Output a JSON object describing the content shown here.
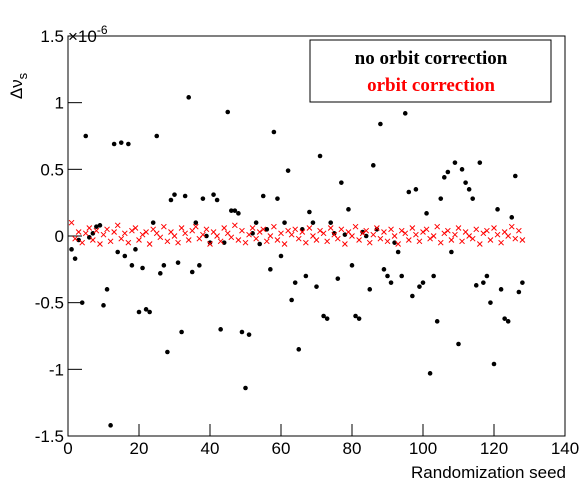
{
  "chart_data": {
    "type": "scatter",
    "xlabel": "Randomization seed",
    "ylabel": {
      "main": "Δν",
      "sub": "s"
    },
    "y_multiplier": {
      "base": "×10",
      "exponent": "-6"
    },
    "xlim": [
      0,
      140
    ],
    "xticks": [
      0,
      20,
      40,
      60,
      80,
      100,
      120,
      140
    ],
    "ylim": [
      -1.5,
      1.5
    ],
    "yticks": [
      -1.5,
      -1,
      -0.5,
      0,
      0.5,
      1,
      1.5
    ],
    "legend": "upper right",
    "x": [
      1,
      2,
      3,
      4,
      5,
      6,
      7,
      8,
      9,
      10,
      11,
      12,
      13,
      14,
      15,
      16,
      17,
      18,
      19,
      20,
      21,
      22,
      23,
      24,
      25,
      26,
      27,
      28,
      29,
      30,
      31,
      32,
      33,
      34,
      35,
      36,
      37,
      38,
      39,
      40,
      41,
      42,
      43,
      44,
      45,
      46,
      47,
      48,
      49,
      50,
      51,
      52,
      53,
      54,
      55,
      56,
      57,
      58,
      59,
      60,
      61,
      62,
      63,
      64,
      65,
      66,
      67,
      68,
      69,
      70,
      71,
      72,
      73,
      74,
      75,
      76,
      77,
      78,
      79,
      80,
      81,
      82,
      83,
      84,
      85,
      86,
      87,
      88,
      89,
      90,
      91,
      92,
      93,
      94,
      95,
      96,
      97,
      98,
      99,
      100,
      101,
      102,
      103,
      104,
      105,
      106,
      107,
      108,
      109,
      110,
      111,
      112,
      113,
      114,
      115,
      116,
      117,
      118,
      119,
      120,
      121,
      122,
      123,
      124,
      125,
      126,
      127,
      128
    ],
    "series": [
      {
        "name": "no orbit correction",
        "color": "#000000",
        "marker": "dot",
        "values": [
          -0.1,
          -0.17,
          -0.03,
          -0.5,
          0.75,
          -0.01,
          0.02,
          0.07,
          0.08,
          -0.52,
          -0.4,
          -1.42,
          0.69,
          -0.12,
          0.7,
          -0.15,
          0.69,
          -0.22,
          -0.1,
          -0.57,
          -0.24,
          -0.55,
          -0.57,
          0.1,
          0.75,
          -0.28,
          -0.22,
          -0.87,
          0.27,
          0.31,
          -0.2,
          -0.72,
          0.3,
          1.04,
          -0.27,
          0.1,
          -0.22,
          0.28,
          0.0,
          -0.05,
          0.31,
          0.27,
          -0.7,
          -0.05,
          0.93,
          0.19,
          0.19,
          0.17,
          -0.72,
          -1.14,
          -0.74,
          0.02,
          0.1,
          -0.06,
          0.3,
          0.05,
          -0.25,
          0.78,
          0.28,
          -0.15,
          0.1,
          0.49,
          -0.48,
          -0.35,
          -0.85,
          0.05,
          -0.3,
          0.18,
          0.1,
          -0.38,
          0.6,
          -0.6,
          -0.62,
          0.1,
          0.02,
          -0.32,
          0.4,
          0.01,
          0.2,
          -0.22,
          -0.6,
          -0.62,
          0.03,
          0.0,
          -0.4,
          0.53,
          0.05,
          0.84,
          -0.25,
          -0.3,
          -0.35,
          -0.05,
          -0.12,
          -0.3,
          0.92,
          0.33,
          -0.45,
          0.35,
          -0.38,
          -0.35,
          0.17,
          -1.03,
          -0.3,
          -0.64,
          0.28,
          0.44,
          0.48,
          -0.12,
          0.55,
          -0.81,
          0.5,
          0.4,
          0.35,
          0.28,
          -0.37,
          0.55,
          -0.35,
          -0.3,
          -0.5,
          -0.96,
          0.2,
          -0.4,
          -0.62,
          -0.64,
          0.14,
          0.45,
          -0.42,
          -0.35
        ]
      },
      {
        "name": "orbit correction",
        "color": "#ff0000",
        "marker": "cross",
        "values": [
          0.1,
          -0.02,
          0.03,
          -0.05,
          0.02,
          0.06,
          -0.03,
          0.04,
          -0.06,
          0.01,
          0.05,
          -0.04,
          0.03,
          0.08,
          -0.02,
          0.02,
          -0.05,
          0.04,
          0.06,
          -0.03,
          0.01,
          0.03,
          -0.06,
          0.05,
          0.02,
          -0.01,
          0.07,
          -0.04,
          0.03,
          0.0,
          -0.05,
          0.06,
          0.02,
          -0.03,
          0.04,
          0.07,
          -0.02,
          0.01,
          0.05,
          -0.06,
          0.03,
          0.0,
          -0.04,
          0.06,
          0.02,
          -0.01,
          0.08,
          -0.03,
          0.04,
          -0.05,
          0.01,
          0.06,
          -0.02,
          0.03,
          0.05,
          -0.04,
          0.0,
          0.07,
          -0.03,
          0.02,
          -0.06,
          0.04,
          0.01,
          0.05,
          -0.02,
          0.03,
          -0.05,
          0.06,
          0.0,
          -0.03,
          0.04,
          0.02,
          -0.04,
          0.06,
          0.01,
          -0.02,
          0.05,
          -0.06,
          0.03,
          0.0,
          0.07,
          -0.03,
          0.02,
          0.04,
          -0.05,
          0.01,
          0.06,
          -0.02,
          0.03,
          -0.04,
          0.05,
          0.0,
          -0.06,
          0.04,
          0.02,
          -0.03,
          0.06,
          0.01,
          -0.04,
          0.03,
          0.05,
          -0.02,
          0.0,
          0.07,
          -0.05,
          0.02,
          0.04,
          -0.03,
          0.01,
          0.06,
          -0.04,
          0.03,
          0.0,
          -0.02,
          0.05,
          -0.06,
          0.02,
          0.04,
          -0.03,
          0.06,
          0.01,
          -0.05,
          0.03,
          0.0,
          0.07,
          -0.02,
          0.04,
          -0.03
        ]
      }
    ]
  }
}
